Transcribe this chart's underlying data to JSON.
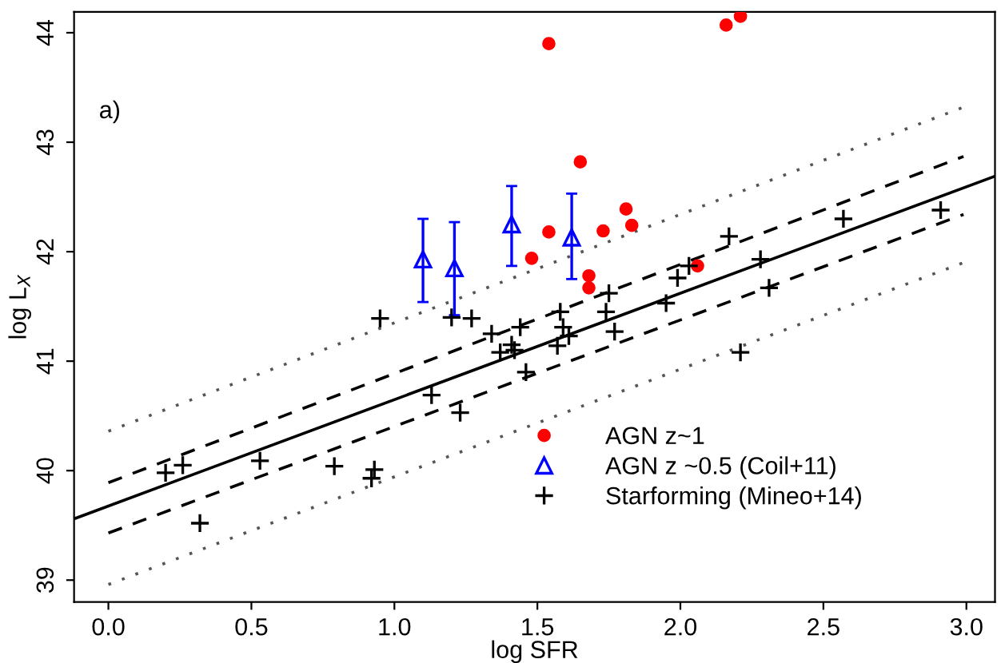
{
  "chart_data": {
    "type": "scatter",
    "xlabel": "log SFR",
    "ylabel": "log L$_{X}$",
    "annotations": [
      "a)"
    ],
    "xlim": [
      -0.12,
      3.1
    ],
    "ylim": [
      38.8,
      44.19
    ],
    "xticks": [
      {
        "value": 0,
        "label": "0.0"
      },
      {
        "value": 0.5,
        "label": "0.5"
      },
      {
        "value": 1,
        "label": "1.0"
      },
      {
        "value": 1.5,
        "label": "1.5"
      },
      {
        "value": 2,
        "label": "2.0"
      },
      {
        "value": 2.5,
        "label": "2.5"
      },
      {
        "value": 3,
        "label": "3.0"
      }
    ],
    "yticks": [
      39,
      40,
      41,
      42,
      43,
      44
    ],
    "grid": false,
    "legend": "bottom right",
    "series": [
      {
        "name": "AGN z~1",
        "marker": "circle",
        "color": "#ff0000",
        "x": [
          1.48,
          1.54,
          2.16,
          2.21,
          1.65,
          1.54,
          1.73,
          1.81,
          1.83,
          1.68,
          1.68,
          2.06
        ],
        "values": [
          41.94,
          43.9,
          44.07,
          44.15,
          42.82,
          42.18,
          42.19,
          42.39,
          42.24,
          41.78,
          41.67,
          41.87
        ]
      },
      {
        "name": "AGN z ~0.5 (Coil+11)",
        "marker": "triangle",
        "color": "#0000ff",
        "x": [
          1.1,
          1.21,
          1.41,
          1.62
        ],
        "values": [
          41.93,
          41.85,
          42.25,
          42.13
        ],
        "errors": [
          [
            41.54,
            42.3
          ],
          [
            41.42,
            42.27
          ],
          [
            41.87,
            42.6
          ],
          [
            41.75,
            42.53
          ]
        ]
      },
      {
        "name": "Starforming (Mineo+14)",
        "marker": "cross",
        "color": "#000000",
        "x": [
          0.2,
          0.26,
          0.32,
          0.53,
          0.79,
          0.92,
          0.93,
          0.95,
          1.13,
          1.2,
          1.23,
          1.27,
          1.34,
          1.37,
          1.41,
          1.42,
          1.44,
          1.46,
          1.58,
          1.75,
          1.74,
          1.95,
          1.99,
          2.03,
          2.17,
          2.28,
          2.31,
          2.57,
          2.91,
          1.59,
          1.61,
          1.57,
          1.77,
          2.21
        ],
        "values": [
          39.98,
          40.05,
          39.52,
          40.09,
          40.04,
          39.93,
          40.01,
          41.39,
          40.69,
          41.4,
          40.53,
          41.39,
          41.25,
          41.08,
          41.15,
          41.1,
          41.31,
          40.9,
          41.45,
          41.62,
          41.45,
          41.53,
          41.76,
          41.87,
          42.14,
          41.93,
          41.67,
          42.3,
          42.38,
          41.31,
          41.23,
          41.14,
          41.27,
          41.08
        ]
      },
      {
        "type": "line",
        "line_style": "solid",
        "color": "#000000",
        "x": [
          -0.12,
          3.1
        ],
        "values": [
          39.56,
          42.69
        ]
      },
      {
        "type": "line",
        "line_style": "dashed",
        "color": "#000000",
        "x": [
          0,
          2.99
        ],
        "values": [
          39.89,
          42.87
        ]
      },
      {
        "type": "line",
        "line_style": "dashed",
        "color": "#000000",
        "x": [
          0,
          2.99
        ],
        "values": [
          39.43,
          42.34
        ]
      },
      {
        "type": "line",
        "line_style": "dotted",
        "color": "#555555",
        "x": [
          0,
          2.99
        ],
        "values": [
          40.36,
          43.32
        ]
      },
      {
        "type": "line",
        "line_style": "dotted",
        "color": "#555555",
        "x": [
          0,
          2.99
        ],
        "values": [
          38.96,
          41.9
        ]
      }
    ]
  }
}
